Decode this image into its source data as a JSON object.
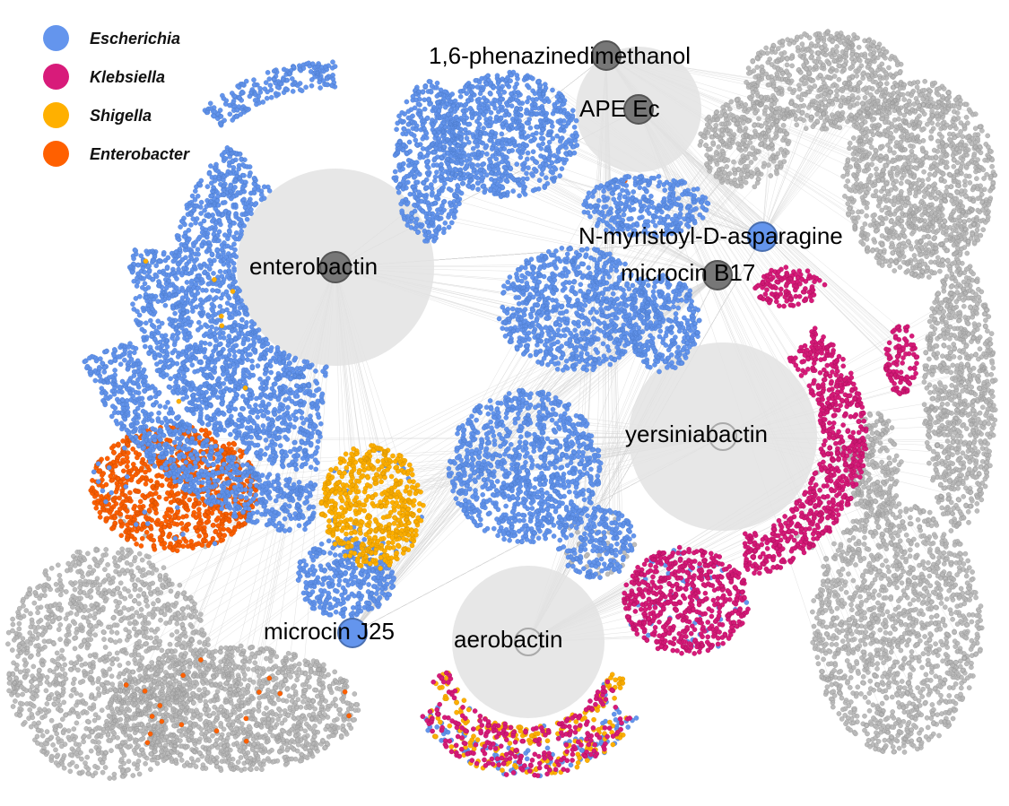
{
  "legend": [
    {
      "genus": "Escherichia",
      "color": "#6495ED"
    },
    {
      "genus": "Klebsiella",
      "color": "#D81B7A"
    },
    {
      "genus": "Shigella",
      "color": "#FFB000"
    },
    {
      "genus": "Enterobacter",
      "color": "#FF6000"
    }
  ],
  "colors": {
    "background_nodes": "#BDBDBD",
    "hub_node": "#777777",
    "edges": "#CFCFCF"
  },
  "hubs": [
    {
      "name": "1,6-phenazinedimethanol",
      "hub_color": "gray"
    },
    {
      "name": "APE Ec",
      "hub_color": "gray"
    },
    {
      "name": "N-myristoyl-D-asparagine",
      "hub_color": "Escherichia"
    },
    {
      "name": "microcin B17",
      "hub_color": "gray"
    },
    {
      "name": "enterobactin",
      "hub_color": "gray"
    },
    {
      "name": "yersiniabactin",
      "hub_color": "none"
    },
    {
      "name": "microcin J25",
      "hub_color": "Escherichia"
    },
    {
      "name": "aerobactin",
      "hub_color": "none"
    }
  ]
}
